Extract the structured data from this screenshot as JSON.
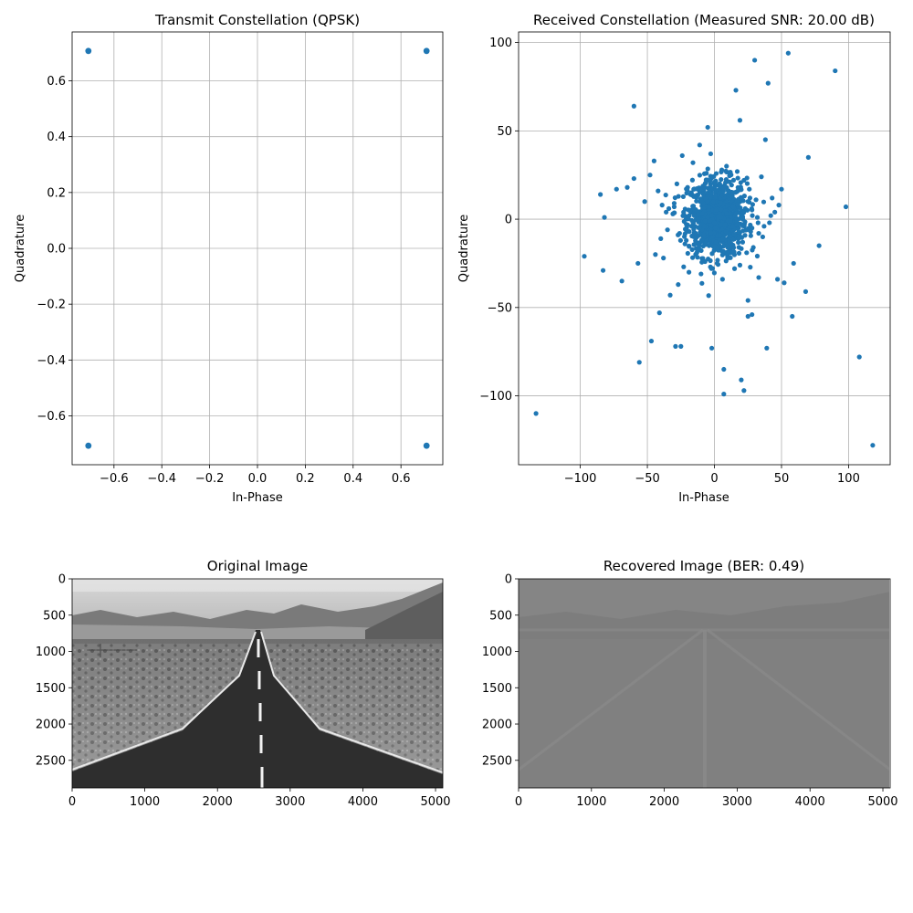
{
  "figure": {
    "background": "#ffffff"
  },
  "chart_data": [
    {
      "type": "scatter",
      "title": "Transmit Constellation (QPSK)",
      "xlabel": "In-Phase",
      "ylabel": "Quadrature",
      "xlim": [
        -0.775,
        0.775
      ],
      "ylim": [
        -0.775,
        0.775
      ],
      "grid": true,
      "marker_color": "#1f77b4",
      "x_ticks": [
        {
          "value": -0.6,
          "label": "−0.6"
        },
        {
          "value": -0.4,
          "label": "−0.4"
        },
        {
          "value": -0.2,
          "label": "−0.2"
        },
        {
          "value": 0.0,
          "label": "0.0"
        },
        {
          "value": 0.2,
          "label": "0.2"
        },
        {
          "value": 0.4,
          "label": "0.4"
        },
        {
          "value": 0.6,
          "label": "0.6"
        }
      ],
      "y_ticks": [
        {
          "value": -0.6,
          "label": "−0.6"
        },
        {
          "value": -0.4,
          "label": "−0.4"
        },
        {
          "value": -0.2,
          "label": "−0.2"
        },
        {
          "value": 0.0,
          "label": "0.0"
        },
        {
          "value": 0.2,
          "label": "0.2"
        },
        {
          "value": 0.4,
          "label": "0.4"
        },
        {
          "value": 0.6,
          "label": "0.6"
        }
      ],
      "x": [
        -0.707,
        0.707,
        -0.707,
        0.707
      ],
      "y": [
        0.707,
        0.707,
        -0.707,
        -0.707
      ]
    },
    {
      "type": "scatter",
      "title": "Received Constellation (Measured SNR: 20.00 dB)",
      "xlabel": "In-Phase",
      "ylabel": "Quadrature",
      "xlim": [
        -146,
        131
      ],
      "ylim": [
        -139,
        106
      ],
      "grid": true,
      "marker_color": "#1f77b4",
      "x_ticks": [
        {
          "value": -100,
          "label": "−100"
        },
        {
          "value": -50,
          "label": "−50"
        },
        {
          "value": 0,
          "label": "0"
        },
        {
          "value": 50,
          "label": "50"
        },
        {
          "value": 100,
          "label": "100"
        }
      ],
      "y_ticks": [
        {
          "value": -100,
          "label": "−100"
        },
        {
          "value": -50,
          "label": "−50"
        },
        {
          "value": 0,
          "label": "0"
        },
        {
          "value": 50,
          "label": "50"
        },
        {
          "value": 100,
          "label": "100"
        }
      ],
      "x": [
        -133,
        118,
        108,
        98,
        90,
        55,
        30,
        40,
        16,
        -60,
        -5,
        70,
        78,
        59,
        58,
        68,
        52,
        47,
        39,
        38,
        28,
        25,
        20,
        22,
        25,
        19,
        7,
        7,
        -2,
        -25,
        -29,
        -56,
        -47,
        -41,
        -57,
        -69,
        -83,
        -97,
        -85,
        -82,
        -73,
        -65,
        -60,
        -52,
        -48,
        -45,
        -42,
        -36,
        -30,
        -28,
        -24,
        -20,
        -16,
        -11,
        -6,
        0,
        4,
        9,
        13,
        17,
        22,
        26,
        31,
        35,
        43,
        48,
        50,
        -38,
        -33,
        -27,
        -22,
        -19,
        -14,
        -10,
        -7,
        -3,
        2,
        6,
        10,
        15,
        19,
        24,
        29,
        33,
        -44,
        -40,
        -35,
        -31,
        -26,
        -21,
        -17,
        -13,
        -8,
        -4,
        1,
        5,
        11,
        14,
        18,
        23,
        27,
        32,
        36,
        41,
        45,
        21,
        -15,
        12,
        -9,
        8,
        -5,
        3,
        0,
        -2,
        5,
        -7,
        9,
        -12,
        14,
        -18,
        17,
        -23,
        24,
        -30,
        28,
        -34,
        33,
        -39,
        37,
        42
      ],
      "y": [
        -110,
        -128,
        -78,
        7,
        84,
        94,
        90,
        77,
        73,
        64,
        52,
        35,
        -15,
        -25,
        -55,
        -41,
        -36,
        -34,
        -73,
        45,
        -54,
        -55,
        -91,
        -97,
        -46,
        56,
        -85,
        -99,
        -73,
        -72,
        -72,
        -81,
        -69,
        -53,
        -25,
        -35,
        -29,
        -21,
        14,
        1,
        17,
        18,
        23,
        10,
        25,
        33,
        16,
        4,
        9,
        20,
        36,
        18,
        32,
        42,
        26,
        21,
        15,
        30,
        13,
        27,
        22,
        17,
        11,
        24,
        12,
        8,
        17,
        -22,
        -43,
        -37,
        -14,
        -30,
        -20,
        -31,
        -24,
        -27,
        -25,
        -34,
        -22,
        -28,
        -26,
        -19,
        -16,
        -33,
        -20,
        -11,
        -6,
        3,
        -8,
        -12,
        -4,
        2,
        -9,
        -15,
        5,
        -3,
        -13,
        7,
        -5,
        6,
        -7,
        1,
        -10,
        -2,
        4,
        0,
        2,
        -1,
        3,
        -3,
        1,
        0,
        -2,
        2,
        1,
        -1,
        3,
        0,
        -4,
        5,
        -3,
        4,
        -6,
        7,
        -5,
        6,
        -8,
        8,
        -4,
        2
      ],
      "note": ""
    },
    {
      "type": "image",
      "title": "Original Image",
      "xlim": [
        0,
        5100
      ],
      "ylim": [
        2880,
        0
      ],
      "x_ticks": [
        {
          "value": 0,
          "label": "0"
        },
        {
          "value": 1000,
          "label": "1000"
        },
        {
          "value": 2000,
          "label": "2000"
        },
        {
          "value": 3000,
          "label": "3000"
        },
        {
          "value": 4000,
          "label": "4000"
        },
        {
          "value": 5000,
          "label": "5000"
        }
      ],
      "y_ticks": [
        {
          "value": 0,
          "label": "0"
        },
        {
          "value": 500,
          "label": "500"
        },
        {
          "value": 1000,
          "label": "1000"
        },
        {
          "value": 1500,
          "label": "1500"
        },
        {
          "value": 2000,
          "label": "2000"
        },
        {
          "value": 2500,
          "label": "2500"
        }
      ]
    },
    {
      "type": "image",
      "title": "Recovered Image (BER: 0.49)",
      "xlim": [
        0,
        5100
      ],
      "ylim": [
        2880,
        0
      ],
      "x_ticks": [
        {
          "value": 0,
          "label": "0"
        },
        {
          "value": 1000,
          "label": "1000"
        },
        {
          "value": 2000,
          "label": "2000"
        },
        {
          "value": 3000,
          "label": "3000"
        },
        {
          "value": 4000,
          "label": "4000"
        },
        {
          "value": 5000,
          "label": "5000"
        }
      ],
      "y_ticks": [
        {
          "value": 0,
          "label": "0"
        },
        {
          "value": 500,
          "label": "500"
        },
        {
          "value": 1000,
          "label": "1000"
        },
        {
          "value": 1500,
          "label": "1500"
        },
        {
          "value": 2000,
          "label": "2000"
        },
        {
          "value": 2500,
          "label": "2500"
        }
      ]
    }
  ]
}
